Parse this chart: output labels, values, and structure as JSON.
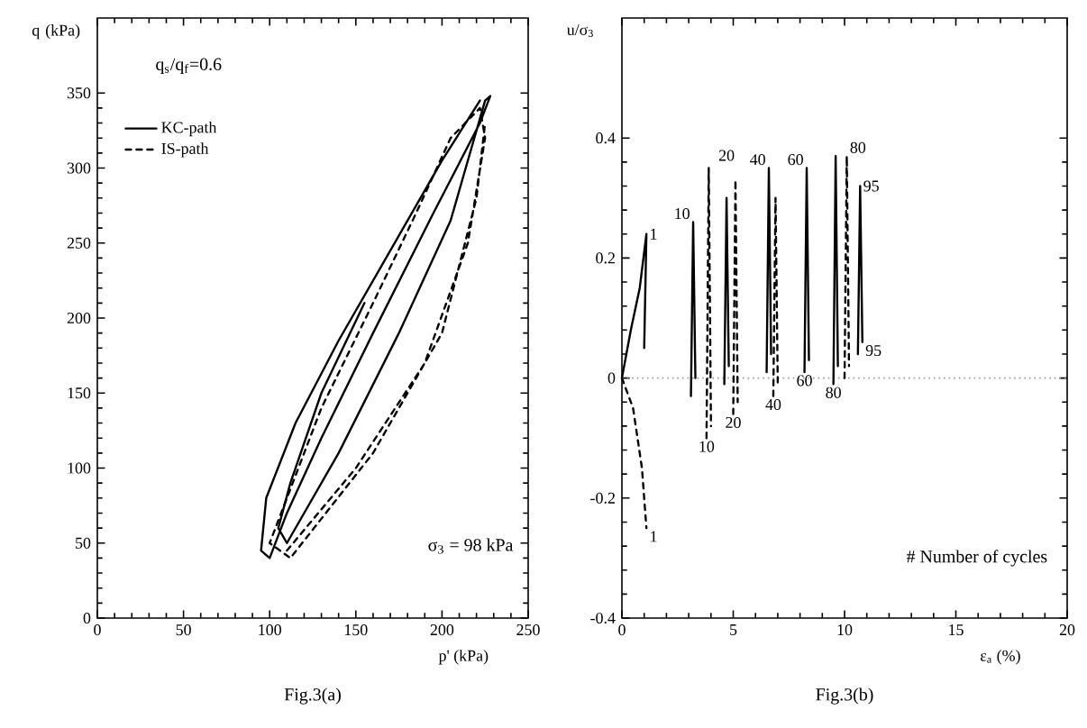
{
  "chart_data": [
    {
      "type": "line",
      "xlabel": "p' (kPa)",
      "ylabel": "q (kPa)",
      "xlim": [
        0,
        250
      ],
      "ylim": [
        0,
        400
      ],
      "xticks": [
        0,
        50,
        100,
        150,
        200,
        250
      ],
      "yticks": [
        0,
        50,
        100,
        150,
        200,
        250,
        300,
        350
      ],
      "legend": "top left",
      "annotations": [
        "q$_{s}$/q$_{f}$=0.6",
        "σ$_{3}$ = 98 kPa",
        "Fig.3(a)"
      ],
      "series": [
        {
          "name": "KC-path",
          "color": "#000000",
          "line_style": "solid",
          "x": [
            155,
            130,
            112,
            105,
            110,
            140,
            175,
            205,
            225,
            228,
            222,
            195,
            160,
            130,
            110,
            100,
            95,
            98,
            115,
            140,
            170,
            200,
            222
          ],
          "values": [
            210,
            150,
            90,
            60,
            50,
            110,
            190,
            265,
            345,
            348,
            330,
            270,
            190,
            120,
            70,
            40,
            45,
            80,
            130,
            185,
            245,
            305,
            345
          ]
        },
        {
          "name": "IS-path",
          "color": "#000000",
          "line_style": "dashed",
          "x": [
            110,
            150,
            190,
            215,
            225,
            222,
            205,
            185,
            160,
            130,
            110,
            100,
            112,
            160,
            200,
            220,
            225
          ],
          "values": [
            45,
            100,
            170,
            250,
            320,
            340,
            320,
            270,
            210,
            140,
            80,
            50,
            40,
            110,
            190,
            280,
            330
          ]
        }
      ]
    },
    {
      "type": "line",
      "xlabel": "ε$_{a}$ (%)",
      "ylabel": "u/σ$_{3}$",
      "xlim": [
        0,
        20
      ],
      "ylim": [
        -0.4,
        0.6
      ],
      "xticks": [
        0,
        5,
        10,
        15,
        20
      ],
      "yticks": [
        -0.4,
        -0.2,
        0,
        0.2,
        0.4
      ],
      "ref_lines": [
        {
          "axis": "y",
          "value": 0,
          "color": "#999999",
          "line_style": "dotted"
        }
      ],
      "annotations": [
        "# Number of cycles",
        "Fig.3(b)",
        {
          "text": "1",
          "x": 1.1,
          "y": 0.24
        },
        {
          "text": "1",
          "x": 1.1,
          "y": -0.25
        },
        {
          "text": "10",
          "x": 3.2,
          "y": 0.26
        },
        {
          "text": "20",
          "x": 4.7,
          "y": 0.3
        },
        {
          "text": "40",
          "x": 6.6,
          "y": 0.35
        },
        {
          "text": "60",
          "x": 8.3,
          "y": 0.35
        },
        {
          "text": "80",
          "x": 10.1,
          "y": 0.37
        },
        {
          "text": "95",
          "x": 10.7,
          "y": 0.32
        },
        {
          "text": "10",
          "x": 3.8,
          "y": -0.1
        },
        {
          "text": "20",
          "x": 5.0,
          "y": -0.06
        },
        {
          "text": "40",
          "x": 6.8,
          "y": -0.03
        },
        {
          "text": "60",
          "x": 8.2,
          "y": 0.01
        },
        {
          "text": "80",
          "x": 9.5,
          "y": -0.01
        },
        {
          "text": "95",
          "x": 10.8,
          "y": 0.06
        }
      ],
      "series": [
        {
          "color": "#000000",
          "line_style": "solid",
          "x": [
            0,
            0.4,
            0.8,
            1.1,
            1.0,
            2.0,
            3.1,
            3.2,
            3.3,
            4.0,
            4.6,
            4.7,
            4.8,
            5.5,
            6.5,
            6.6,
            6.7,
            7.5,
            8.2,
            8.3,
            8.4,
            9.0,
            9.5,
            9.6,
            9.7,
            10.2,
            10.6,
            10.7,
            10.8
          ],
          "values": [
            0,
            0.08,
            0.15,
            0.24,
            0.05,
            null,
            -0.03,
            0.26,
            0.0,
            null,
            -0.01,
            0.3,
            0.02,
            null,
            0.01,
            0.35,
            0.04,
            null,
            0.01,
            0.35,
            0.03,
            null,
            -0.01,
            0.37,
            0.02,
            null,
            0.04,
            0.32,
            0.06
          ]
        },
        {
          "color": "#000000",
          "line_style": "dashed",
          "x": [
            0,
            0.5,
            0.9,
            1.1,
            2.5,
            3.8,
            3.9,
            4.0,
            4.5,
            5.0,
            5.1,
            5.2,
            6.0,
            6.8,
            6.9,
            7.0,
            8.5,
            10.0,
            10.1,
            10.2
          ],
          "values": [
            0,
            -0.05,
            -0.15,
            -0.25,
            null,
            -0.1,
            0.35,
            -0.08,
            null,
            -0.06,
            0.33,
            -0.04,
            null,
            -0.03,
            0.3,
            -0.01,
            null,
            0.0,
            0.37,
            0.02
          ]
        }
      ]
    }
  ]
}
